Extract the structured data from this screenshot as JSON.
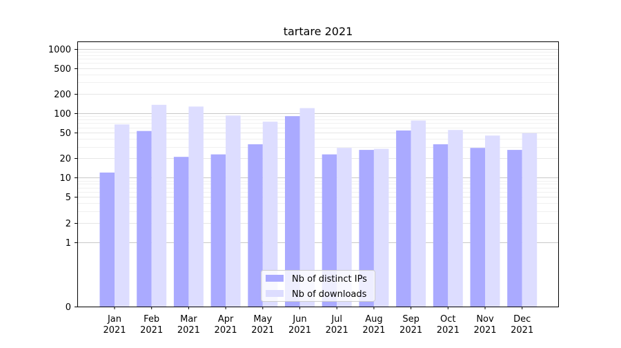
{
  "chart_data": {
    "type": "bar",
    "title": "tartare 2021",
    "xlabel": "",
    "ylabel": "",
    "y_scale": "symlog",
    "ylim": [
      0,
      1300
    ],
    "y_ticks": [
      0,
      1,
      2,
      5,
      10,
      20,
      50,
      100,
      200,
      500,
      1000
    ],
    "categories": [
      "Jan\n2021",
      "Feb\n2021",
      "Mar\n2021",
      "Apr\n2021",
      "May\n2021",
      "Jun\n2021",
      "Jul\n2021",
      "Aug\n2021",
      "Sep\n2021",
      "Oct\n2021",
      "Nov\n2021",
      "Dec\n2021"
    ],
    "series": [
      {
        "name": "Nb of distinct IPs",
        "color": "#aaaaff",
        "values": [
          12,
          53,
          21,
          23,
          33,
          90,
          23,
          27,
          54,
          33,
          29,
          27
        ]
      },
      {
        "name": "Nb of downloads",
        "color": "#ddddff",
        "values": [
          67,
          135,
          127,
          92,
          74,
          120,
          29,
          28,
          77,
          55,
          45,
          49
        ]
      }
    ],
    "grid": true,
    "legend": "bottom-center"
  }
}
